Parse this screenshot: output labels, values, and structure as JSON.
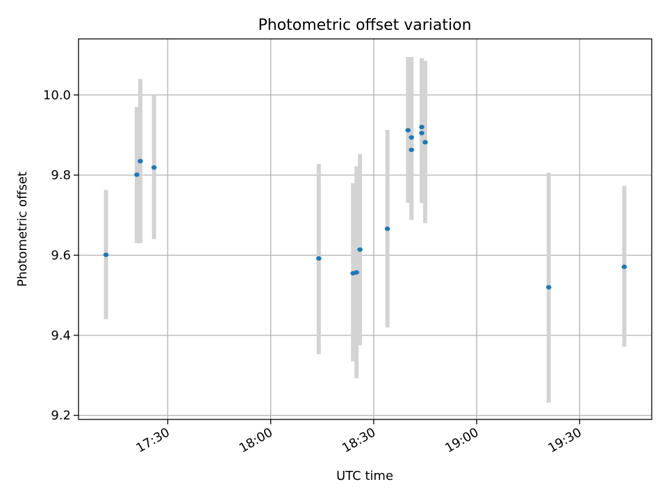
{
  "chart_data": {
    "type": "scatter",
    "title": "Photometric offset variation",
    "xlabel": "UTC time",
    "ylabel": "Photometric offset",
    "x_axis_type": "time",
    "xlim": [
      "17:04",
      "19:51"
    ],
    "ylim": [
      9.19,
      10.14
    ],
    "x_ticks": [
      "17:30",
      "18:00",
      "18:30",
      "19:00",
      "19:30"
    ],
    "y_ticks": [
      9.2,
      9.4,
      9.6,
      9.8,
      10.0
    ],
    "y_tick_labels": [
      "9.2",
      "9.4",
      "9.6",
      "9.8",
      "10.0"
    ],
    "grid": true,
    "point_color": "#1f77b4",
    "errorbar_color": "#d3d3d3",
    "points": [
      {
        "x": "17:12",
        "y": 9.601,
        "ylow": 9.44,
        "yhigh": 9.763
      },
      {
        "x": "17:21",
        "y": 9.801,
        "ylow": 9.63,
        "yhigh": 9.97
      },
      {
        "x": "17:22",
        "y": 9.835,
        "ylow": 9.63,
        "yhigh": 10.04
      },
      {
        "x": "17:26",
        "y": 9.819,
        "ylow": 9.64,
        "yhigh": 10.0
      },
      {
        "x": "18:14",
        "y": 9.592,
        "ylow": 9.353,
        "yhigh": 9.828
      },
      {
        "x": "18:24",
        "y": 9.555,
        "ylow": 9.335,
        "yhigh": 9.78
      },
      {
        "x": "18:25",
        "y": 9.557,
        "ylow": 9.293,
        "yhigh": 9.822
      },
      {
        "x": "18:26",
        "y": 9.614,
        "ylow": 9.375,
        "yhigh": 9.852
      },
      {
        "x": "18:34",
        "y": 9.666,
        "ylow": 9.42,
        "yhigh": 9.913
      },
      {
        "x": "18:40",
        "y": 9.912,
        "ylow": 9.731,
        "yhigh": 10.095
      },
      {
        "x": "18:41",
        "y": 9.894,
        "ylow": 9.691,
        "yhigh": 10.095
      },
      {
        "x": "18:41",
        "y": 9.863,
        "ylow": 9.688,
        "yhigh": 10.04
      },
      {
        "x": "18:44",
        "y": 9.92,
        "ylow": 9.748,
        "yhigh": 10.092
      },
      {
        "x": "18:44",
        "y": 9.905,
        "ylow": 9.73,
        "yhigh": 10.075
      },
      {
        "x": "18:45",
        "y": 9.882,
        "ylow": 9.68,
        "yhigh": 10.085
      },
      {
        "x": "19:21",
        "y": 9.52,
        "ylow": 9.232,
        "yhigh": 9.806
      },
      {
        "x": "19:43",
        "y": 9.571,
        "ylow": 9.372,
        "yhigh": 9.773
      }
    ]
  }
}
